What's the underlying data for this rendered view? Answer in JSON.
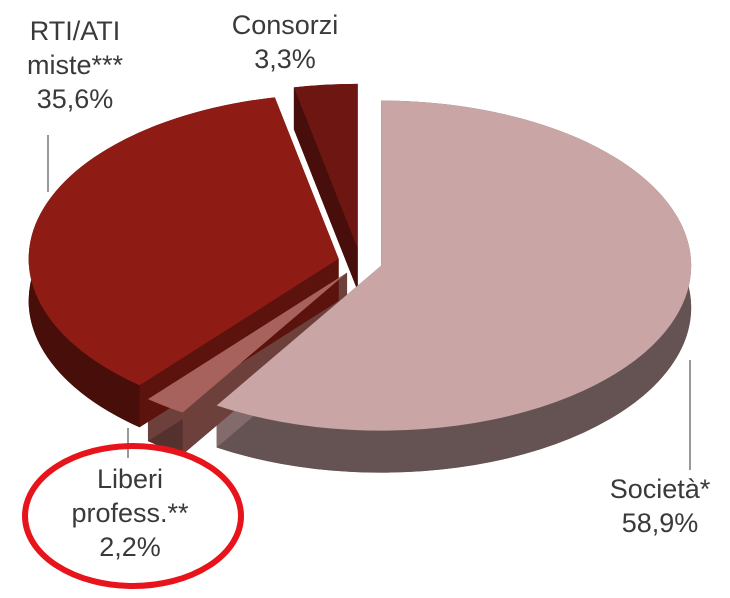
{
  "chart_data": {
    "type": "pie",
    "categories": [
      "Società*",
      "Liberi profess.**",
      "RTI/ATI miste***",
      "Consorzi"
    ],
    "values": [
      58.9,
      2.2,
      35.6,
      3.3
    ],
    "value_labels": [
      "58,9%",
      "2,2%",
      "35,6%",
      "3,3%"
    ],
    "colors": [
      "#c9a5a5",
      "#a8625d",
      "#8e1c14",
      "#6e1612"
    ]
  }
}
